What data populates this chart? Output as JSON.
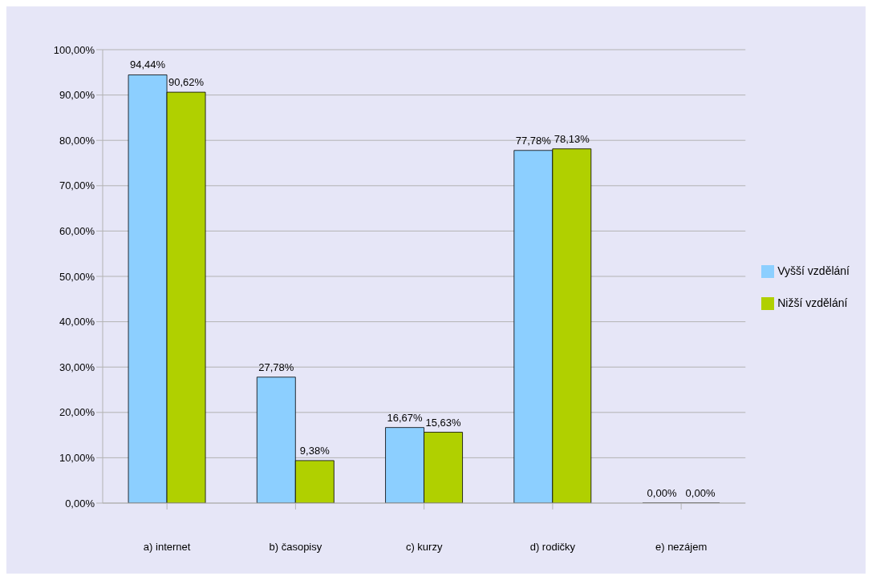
{
  "chart_data": {
    "type": "bar",
    "categories": [
      "a) internet",
      "b) časopisy",
      "c) kurzy",
      "d) rodičky",
      "e) nezájem"
    ],
    "series": [
      {
        "name": "Vyšší vzdělání",
        "color": "#8ccfff",
        "values": [
          94.44,
          27.78,
          16.67,
          77.78,
          0
        ],
        "value_labels": [
          "94,44%",
          "27,78%",
          "16,67%",
          "77,78%",
          "0,00%"
        ]
      },
      {
        "name": "Nižší vzdělání",
        "color": "#b0d000",
        "values": [
          90.62,
          9.38,
          15.63,
          78.13,
          0
        ],
        "value_labels": [
          "90,62%",
          "9,38%",
          "15,63%",
          "78,13%",
          "0,00%"
        ]
      }
    ],
    "ylim": [
      0,
      100
    ],
    "yticks": [
      {
        "value": 0,
        "label": "0,00%"
      },
      {
        "value": 10,
        "label": "10,00%"
      },
      {
        "value": 20,
        "label": "20,00%"
      },
      {
        "value": 30,
        "label": "30,00%"
      },
      {
        "value": 40,
        "label": "40,00%"
      },
      {
        "value": 50,
        "label": "50,00%"
      },
      {
        "value": 60,
        "label": "60,00%"
      },
      {
        "value": 70,
        "label": "70,00%"
      },
      {
        "value": 80,
        "label": "80,00%"
      },
      {
        "value": 90,
        "label": "90,00%"
      },
      {
        "value": 100,
        "label": "100,00%"
      }
    ],
    "grid": "y",
    "legend": "right"
  }
}
